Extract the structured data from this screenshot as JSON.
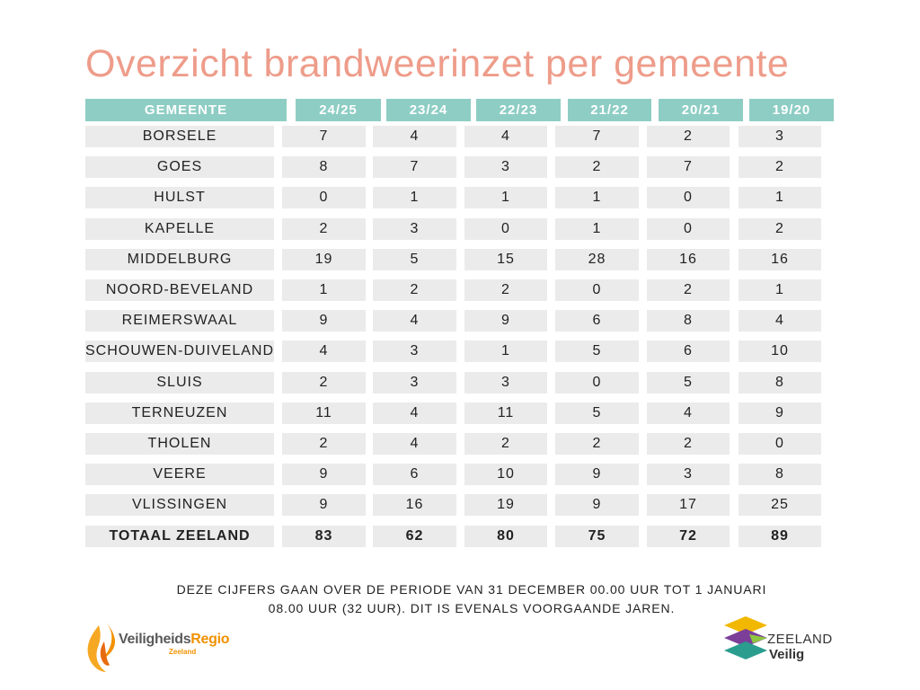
{
  "title": "Overzicht brandweerinzet per gemeente",
  "table": {
    "header": [
      "GEMEENTE",
      "24/25",
      "23/24",
      "22/23",
      "21/22",
      "20/21",
      "19/20"
    ],
    "rows": [
      {
        "name": "BORSELE",
        "values": [
          "7",
          "4",
          "4",
          "7",
          "2",
          "3"
        ]
      },
      {
        "name": "GOES",
        "values": [
          "8",
          "7",
          "3",
          "2",
          "7",
          "2"
        ]
      },
      {
        "name": "HULST",
        "values": [
          "0",
          "1",
          "1",
          "1",
          "0",
          "1"
        ]
      },
      {
        "name": "KAPELLE",
        "values": [
          "2",
          "3",
          "0",
          "1",
          "0",
          "2"
        ]
      },
      {
        "name": "MIDDELBURG",
        "values": [
          "19",
          "5",
          "15",
          "28",
          "16",
          "16"
        ]
      },
      {
        "name": "NOORD-BEVELAND",
        "values": [
          "1",
          "2",
          "2",
          "0",
          "2",
          "1"
        ]
      },
      {
        "name": "REIMERSWAAL",
        "values": [
          "9",
          "4",
          "9",
          "6",
          "8",
          "4"
        ]
      },
      {
        "name": "SCHOUWEN-DUIVELAND",
        "values": [
          "4",
          "3",
          "1",
          "5",
          "6",
          "10"
        ]
      },
      {
        "name": "SLUIS",
        "values": [
          "2",
          "3",
          "3",
          "0",
          "5",
          "8"
        ]
      },
      {
        "name": "TERNEUZEN",
        "values": [
          "11",
          "4",
          "11",
          "5",
          "4",
          "9"
        ]
      },
      {
        "name": "THOLEN",
        "values": [
          "2",
          "4",
          "2",
          "2",
          "2",
          "0"
        ]
      },
      {
        "name": "VEERE",
        "values": [
          "9",
          "6",
          "10",
          "9",
          "3",
          "8"
        ]
      },
      {
        "name": "VLISSINGEN",
        "values": [
          "9",
          "16",
          "19",
          "9",
          "17",
          "25"
        ]
      }
    ],
    "total": {
      "name": "TOTAAL ZEELAND",
      "values": [
        "83",
        "62",
        "80",
        "75",
        "72",
        "89"
      ]
    }
  },
  "note": {
    "line1": "DEZE CIJFERS GAAN OVER DE PERIODE VAN 31 DECEMBER 00.00 UUR TOT 1 JANUARI",
    "line2": "08.00 UUR (32 UUR). DIT IS EVENALS VOORGAANDE JAREN."
  },
  "logo_left": {
    "part1": "Veiligheids",
    "part2": "Regio",
    "sub": "Zeeland"
  },
  "logo_right": {
    "line1": "ZEELAND",
    "line2": "Veilig"
  },
  "colors": {
    "title": "#EE9C8A",
    "header_bg": "#8ECDC4",
    "cell_bg": "#EBEBEB",
    "logo_orange": "#F29100",
    "logo_teal": "#2A9D8F",
    "logo_purple": "#7B3F99",
    "logo_yellow": "#F2B800",
    "logo_green": "#8DC63F"
  }
}
